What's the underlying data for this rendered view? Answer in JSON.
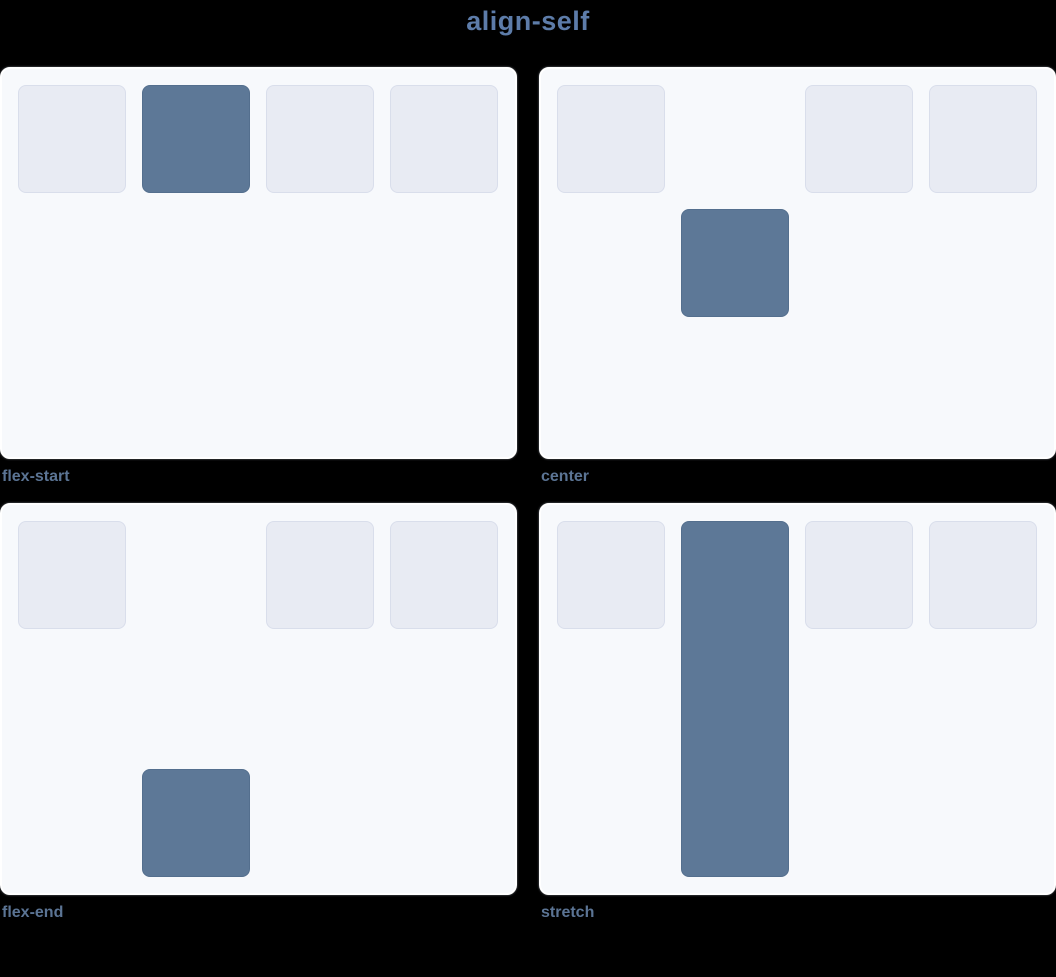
{
  "title": {
    "text": "align-self"
  },
  "demos": [
    {
      "label": "flex-start",
      "highlight_align": "flex-start",
      "highlight_index": 2,
      "item_count": 4
    },
    {
      "label": "center",
      "highlight_align": "center",
      "highlight_index": 2,
      "item_count": 4
    },
    {
      "label": "flex-end",
      "highlight_align": "flex-end",
      "highlight_index": 2,
      "item_count": 4
    },
    {
      "label": "stretch",
      "highlight_align": "stretch",
      "highlight_index": 2,
      "item_count": 4
    }
  ],
  "colors": {
    "canvas_background": "#000000",
    "panel_background": "#f7f9fc",
    "panel_border": "#ffffff",
    "item_background": "#e8ebf3",
    "item_border": "#d9deeb",
    "highlight_background": "#5d7897",
    "highlight_border": "#546f8e",
    "title_text": "#5d7ca9",
    "caption_text": "#5b7494"
  }
}
